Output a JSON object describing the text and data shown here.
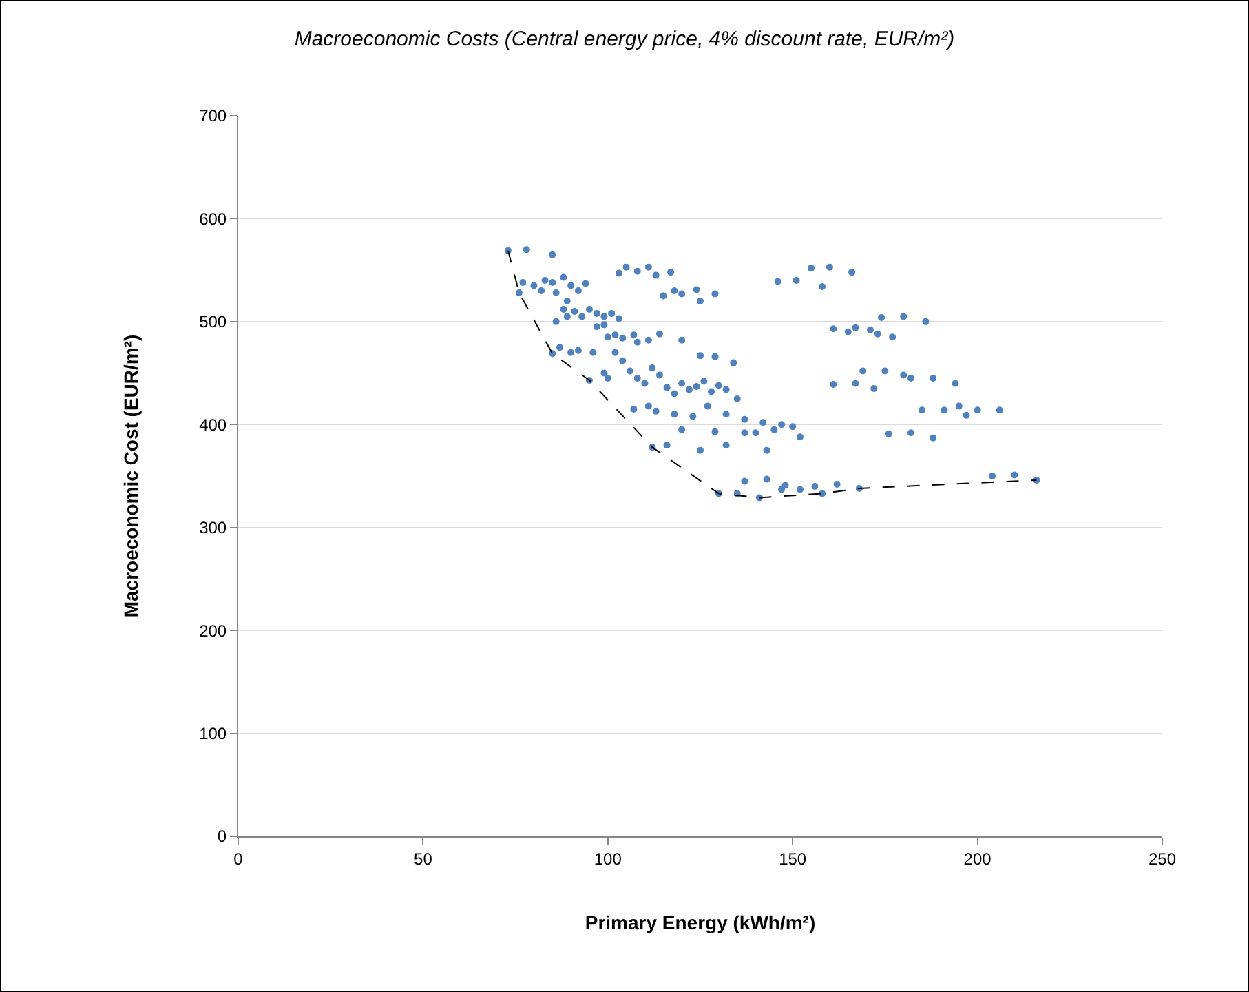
{
  "chart_data": {
    "type": "scatter",
    "title": "Macroeconomic Costs (Central energy price, 4% discount rate, EUR/m²)",
    "xlabel": "Primary Energy (kWh/m²)",
    "ylabel": "Macroeconomic Cost (EUR/m²)",
    "xlim": [
      0,
      250
    ],
    "ylim": [
      0,
      700
    ],
    "xticks": [
      0,
      50,
      100,
      150,
      200,
      250
    ],
    "yticks": [
      0,
      100,
      200,
      300,
      400,
      500,
      600,
      700
    ],
    "grid": "y",
    "series": [
      {
        "marker": "circle",
        "color": "#4f81bd",
        "x": [
          73,
          78,
          85,
          77,
          80,
          82,
          83,
          85,
          88,
          90,
          92,
          94,
          86,
          89,
          76,
          91,
          93,
          95,
          97,
          99,
          101,
          103,
          88,
          86,
          89,
          100,
          102,
          104,
          97,
          99,
          107,
          108,
          111,
          114,
          120,
          125,
          129,
          105,
          108,
          111,
          113,
          103,
          115,
          117,
          118,
          120,
          124,
          125,
          129,
          85,
          87,
          90,
          92,
          95,
          96,
          99,
          100,
          102,
          104,
          106,
          108,
          110,
          112,
          114,
          116,
          118,
          120,
          122,
          124,
          126,
          128,
          130,
          132,
          134,
          135,
          107,
          111,
          113,
          118,
          123,
          127,
          132,
          137,
          142,
          147,
          150,
          112,
          116,
          120,
          125,
          129,
          132,
          137,
          140,
          143,
          145,
          152,
          137,
          143,
          147,
          148,
          152,
          156,
          162,
          130,
          135,
          141,
          158,
          168,
          204,
          210,
          216,
          146,
          151,
          155,
          158,
          160,
          166,
          161,
          165,
          167,
          171,
          173,
          177,
          174,
          180,
          186,
          161,
          167,
          169,
          172,
          175,
          180,
          182,
          188,
          194,
          185,
          191,
          195,
          197,
          200,
          206,
          176,
          182,
          188
        ],
        "values": [
          569,
          570,
          565,
          538,
          535,
          530,
          540,
          538,
          543,
          535,
          530,
          537,
          528,
          520,
          528,
          510,
          505,
          512,
          508,
          505,
          508,
          503,
          512,
          500,
          505,
          485,
          487,
          484,
          495,
          497,
          487,
          480,
          482,
          488,
          482,
          467,
          466,
          553,
          549,
          553,
          545,
          547,
          525,
          548,
          530,
          527,
          531,
          520,
          527,
          469,
          475,
          470,
          472,
          443,
          470,
          450,
          445,
          470,
          462,
          452,
          445,
          440,
          455,
          448,
          436,
          430,
          440,
          434,
          437,
          442,
          432,
          438,
          434,
          460,
          425,
          415,
          418,
          413,
          410,
          408,
          418,
          410,
          405,
          402,
          400,
          398,
          378,
          380,
          395,
          375,
          393,
          380,
          392,
          392,
          375,
          395,
          388,
          345,
          347,
          337,
          341,
          337,
          340,
          342,
          333,
          333,
          329,
          333,
          338,
          350,
          351,
          346,
          539,
          540,
          552,
          534,
          553,
          548,
          493,
          490,
          494,
          492,
          488,
          485,
          504,
          505,
          500,
          439,
          440,
          452,
          435,
          452,
          448,
          445,
          445,
          440,
          414,
          414,
          418,
          409,
          414,
          414,
          391,
          392,
          387
        ]
      },
      {
        "type": "line",
        "line_style": "dashed",
        "marker": "none",
        "color": "#000000",
        "x": [
          73,
          76,
          85,
          95,
          112,
          130,
          141,
          158,
          168,
          216
        ],
        "values": [
          569,
          528,
          469,
          443,
          378,
          333,
          329,
          333,
          338,
          346
        ]
      }
    ]
  }
}
